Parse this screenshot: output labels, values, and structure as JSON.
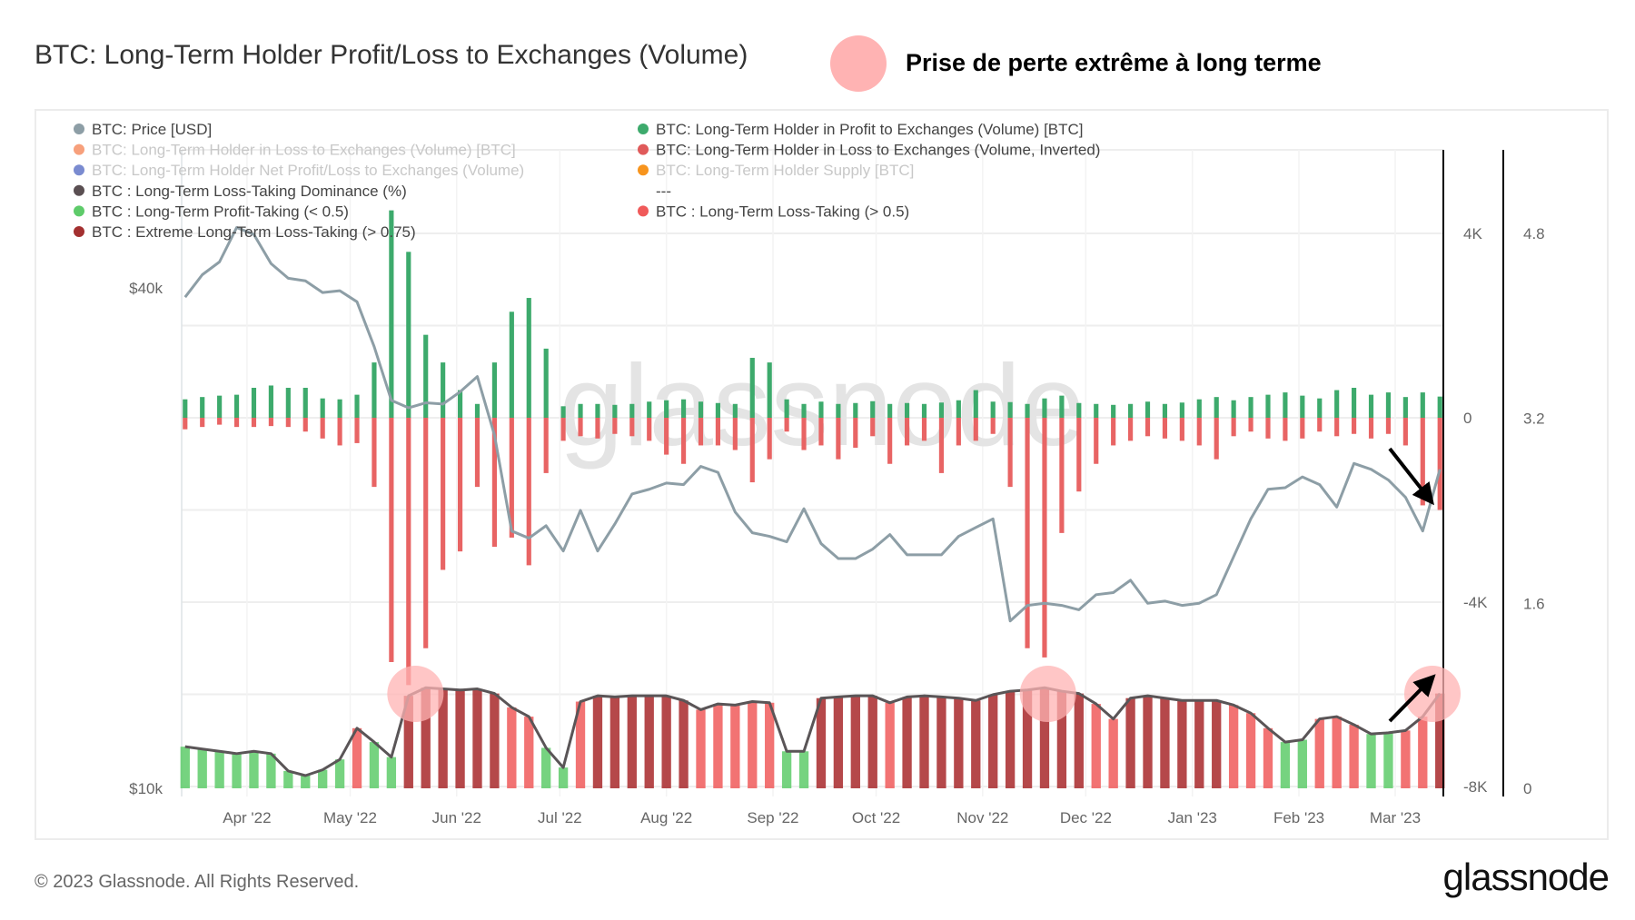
{
  "header": {
    "title": "BTC: Long-Term Holder Profit/Loss to Exchanges (Volume)",
    "annotation_label": "Prise de perte extrême à long terme",
    "annotation_color": "#ffb3b3"
  },
  "footer": {
    "copyright": "© 2023 Glassnode. All Rights Reserved.",
    "logo": "glassnode"
  },
  "watermark": "glassnode",
  "legend": [
    {
      "label": "BTC: Price [USD]",
      "color": "#8d9ea6",
      "faded": false,
      "col": 0
    },
    {
      "label": "BTC: Long-Term Holder in Loss to Exchanges (Volume) [BTC]",
      "color": "#f7a07c",
      "faded": true,
      "col": 0
    },
    {
      "label": "BTC: Long-Term Holder Net Profit/Loss to Exchanges (Volume)",
      "color": "#7a8bd0",
      "faded": true,
      "col": 0
    },
    {
      "label": "BTC : Long-Term Loss-Taking Dominance (%)",
      "color": "#5a4f52",
      "faded": false,
      "col": 0
    },
    {
      "label": "BTC : Long-Term Profit-Taking (< 0.5)",
      "color": "#5ecb6a",
      "faded": false,
      "col": 0
    },
    {
      "label": "BTC : Extreme Long-Term Loss-Taking (> 0.75)",
      "color": "#a33030",
      "faded": false,
      "col": 0
    },
    {
      "label": "BTC: Long-Term Holder in Profit to Exchanges (Volume) [BTC]",
      "color": "#3daa6c",
      "faded": false,
      "col": 1
    },
    {
      "label": "BTC: Long-Term Holder in Loss to Exchanges (Volume, Inverted)",
      "color": "#e05a5a",
      "faded": false,
      "col": 1
    },
    {
      "label": "BTC: Long-Term Holder Supply [BTC]",
      "color": "#f7941d",
      "faded": true,
      "col": 1
    },
    {
      "label": "---",
      "color": "",
      "faded": false,
      "col": 1
    },
    {
      "label": "BTC : Long-Term Loss-Taking (> 0.5)",
      "color": "#f05a5a",
      "faded": false,
      "col": 1
    }
  ],
  "chart_data": {
    "type": "bar",
    "title": "BTC: Long-Term Holder Profit/Loss to Exchanges (Volume)",
    "x_range": [
      "2022-03-13",
      "2023-03-15"
    ],
    "x_ticks": [
      "Apr '22",
      "May '22",
      "Jun '22",
      "Jul '22",
      "Aug '22",
      "Sep '22",
      "Oct '22",
      "Nov '22",
      "Dec '22",
      "Jan '23",
      "Feb '23",
      "Mar '23"
    ],
    "x_tick_dates": [
      "2022-04-01",
      "2022-05-01",
      "2022-06-01",
      "2022-07-01",
      "2022-08-01",
      "2022-09-01",
      "2022-10-01",
      "2022-11-01",
      "2022-12-01",
      "2023-01-01",
      "2023-02-01",
      "2023-03-01"
    ],
    "price_axis": {
      "scale": "log",
      "ticks": [
        "$40k",
        "$10k"
      ],
      "tick_values": [
        40000,
        10000
      ]
    },
    "volume_axis": {
      "ticks": [
        "4K",
        "0",
        "-4K",
        "-8K"
      ],
      "tick_values": [
        4000,
        0,
        -4000,
        -8000
      ],
      "range": [
        -8000,
        6000
      ]
    },
    "dominance_axis": {
      "ticks": [
        "4.8",
        "3.2",
        "1.6",
        "0"
      ],
      "tick_values": [
        4.8,
        3.2,
        1.6,
        0
      ],
      "range": [
        0,
        5.4
      ]
    },
    "thresholds": {
      "profit_taking_below": 0.5,
      "loss_taking_above": 0.5,
      "extreme_above": 0.75
    },
    "colors": {
      "price": "#8d9ea6",
      "profit": "#3daa6c",
      "loss": "#e86464",
      "dominance_line": "#5a5557",
      "dom_green": "#5ecb6a",
      "dom_red": "#f05a5a",
      "dom_extreme": "#a8282a"
    },
    "grid": true,
    "dates": [
      "2022-03-14",
      "2022-03-19",
      "2022-03-24",
      "2022-03-29",
      "2022-04-03",
      "2022-04-08",
      "2022-04-13",
      "2022-04-18",
      "2022-04-23",
      "2022-04-28",
      "2022-05-03",
      "2022-05-08",
      "2022-05-13",
      "2022-05-18",
      "2022-05-23",
      "2022-05-28",
      "2022-06-02",
      "2022-06-07",
      "2022-06-12",
      "2022-06-17",
      "2022-06-22",
      "2022-06-27",
      "2022-07-02",
      "2022-07-07",
      "2022-07-12",
      "2022-07-17",
      "2022-07-22",
      "2022-07-27",
      "2022-08-01",
      "2022-08-06",
      "2022-08-11",
      "2022-08-16",
      "2022-08-21",
      "2022-08-26",
      "2022-08-31",
      "2022-09-05",
      "2022-09-10",
      "2022-09-15",
      "2022-09-20",
      "2022-09-25",
      "2022-09-30",
      "2022-10-05",
      "2022-10-10",
      "2022-10-15",
      "2022-10-20",
      "2022-10-25",
      "2022-10-30",
      "2022-11-04",
      "2022-11-09",
      "2022-11-14",
      "2022-11-19",
      "2022-11-24",
      "2022-11-29",
      "2022-12-04",
      "2022-12-09",
      "2022-12-14",
      "2022-12-19",
      "2022-12-24",
      "2022-12-29",
      "2023-01-03",
      "2023-01-08",
      "2023-01-13",
      "2023-01-18",
      "2023-01-23",
      "2023-01-28",
      "2023-02-02",
      "2023-02-07",
      "2023-02-12",
      "2023-02-17",
      "2023-02-22",
      "2023-02-27",
      "2023-03-04",
      "2023-03-09",
      "2023-03-14"
    ],
    "series": [
      {
        "name": "BTC: Price [USD]",
        "values": [
          39000,
          41500,
          43000,
          47300,
          46400,
          42800,
          41100,
          40800,
          39500,
          39700,
          38500,
          34000,
          29300,
          28700,
          29100,
          29000,
          30000,
          31300,
          26600,
          20400,
          20000,
          20700,
          19300,
          21600,
          19300,
          20800,
          22600,
          22900,
          23300,
          23200,
          24400,
          24000,
          21500,
          20300,
          20100,
          19800,
          21700,
          19700,
          18900,
          18900,
          19400,
          20200,
          19100,
          19100,
          19100,
          20100,
          20600,
          21100,
          15900,
          16600,
          16700,
          16600,
          16400,
          17100,
          17200,
          17800,
          16700,
          16800,
          16600,
          16700,
          17100,
          19000,
          21100,
          22900,
          23000,
          23700,
          23200,
          21800,
          24600,
          24200,
          23500,
          22400,
          20400,
          24200
        ]
      },
      {
        "name": "BTC: Long-Term Holder in Profit to Exchanges (Volume) [BTC]",
        "values": [
          400,
          450,
          480,
          500,
          650,
          700,
          650,
          650,
          420,
          400,
          500,
          1200,
          4500,
          3600,
          1800,
          1200,
          600,
          300,
          1200,
          2300,
          2600,
          1500,
          250,
          300,
          300,
          280,
          300,
          350,
          380,
          400,
          350,
          320,
          300,
          1300,
          1200,
          400,
          300,
          350,
          300,
          320,
          360,
          300,
          320,
          300,
          330,
          380,
          600,
          350,
          340,
          300,
          420,
          480,
          320,
          300,
          280,
          300,
          350,
          300,
          330,
          400,
          450,
          380,
          450,
          500,
          550,
          480,
          420,
          600,
          650,
          500,
          550,
          450,
          550,
          460
        ]
      },
      {
        "name": "BTC: Long-Term Holder in Loss to Exchanges (Volume, Inverted)",
        "values": [
          -250,
          -200,
          -150,
          -200,
          -200,
          -180,
          -200,
          -300,
          -450,
          -600,
          -550,
          -1500,
          -5300,
          -5800,
          -5000,
          -3300,
          -2900,
          -1500,
          -2800,
          -2600,
          -3200,
          -1200,
          -500,
          -400,
          -450,
          -350,
          -400,
          -500,
          -800,
          -1000,
          -600,
          -600,
          -700,
          -1400,
          -900,
          -300,
          -700,
          -600,
          -900,
          -650,
          -400,
          -1000,
          -600,
          -500,
          -1200,
          -600,
          -500,
          -350,
          -1500,
          -5000,
          -5200,
          -2500,
          -1600,
          -1000,
          -600,
          -500,
          -400,
          -450,
          -500,
          -600,
          -900,
          -400,
          -300,
          -450,
          -500,
          -450,
          -300,
          -400,
          -350,
          -450,
          -350,
          -600,
          -1900,
          -2000
        ]
      },
      {
        "name": "BTC : Long-Term Loss-Taking Dominance (%)",
        "values": [
          0.36,
          0.34,
          0.32,
          0.3,
          0.32,
          0.3,
          0.15,
          0.11,
          0.16,
          0.25,
          0.52,
          0.4,
          0.27,
          0.8,
          0.87,
          0.86,
          0.85,
          0.86,
          0.82,
          0.7,
          0.62,
          0.35,
          0.18,
          0.75,
          0.8,
          0.79,
          0.8,
          0.8,
          0.8,
          0.76,
          0.68,
          0.73,
          0.72,
          0.75,
          0.74,
          0.32,
          0.32,
          0.78,
          0.79,
          0.8,
          0.8,
          0.74,
          0.79,
          0.8,
          0.79,
          0.78,
          0.76,
          0.81,
          0.84,
          0.85,
          0.87,
          0.84,
          0.82,
          0.73,
          0.6,
          0.78,
          0.8,
          0.78,
          0.76,
          0.76,
          0.76,
          0.72,
          0.65,
          0.52,
          0.4,
          0.42,
          0.6,
          0.62,
          0.55,
          0.47,
          0.48,
          0.5,
          0.62,
          0.82
        ]
      }
    ],
    "annotations": [
      {
        "type": "circle",
        "date": "2022-05-20"
      },
      {
        "type": "circle",
        "date": "2022-11-20"
      },
      {
        "type": "circle",
        "date": "2023-03-14"
      },
      {
        "type": "arrow-down",
        "date": "2023-03-10"
      },
      {
        "type": "arrow-up",
        "date": "2023-03-10"
      }
    ]
  }
}
